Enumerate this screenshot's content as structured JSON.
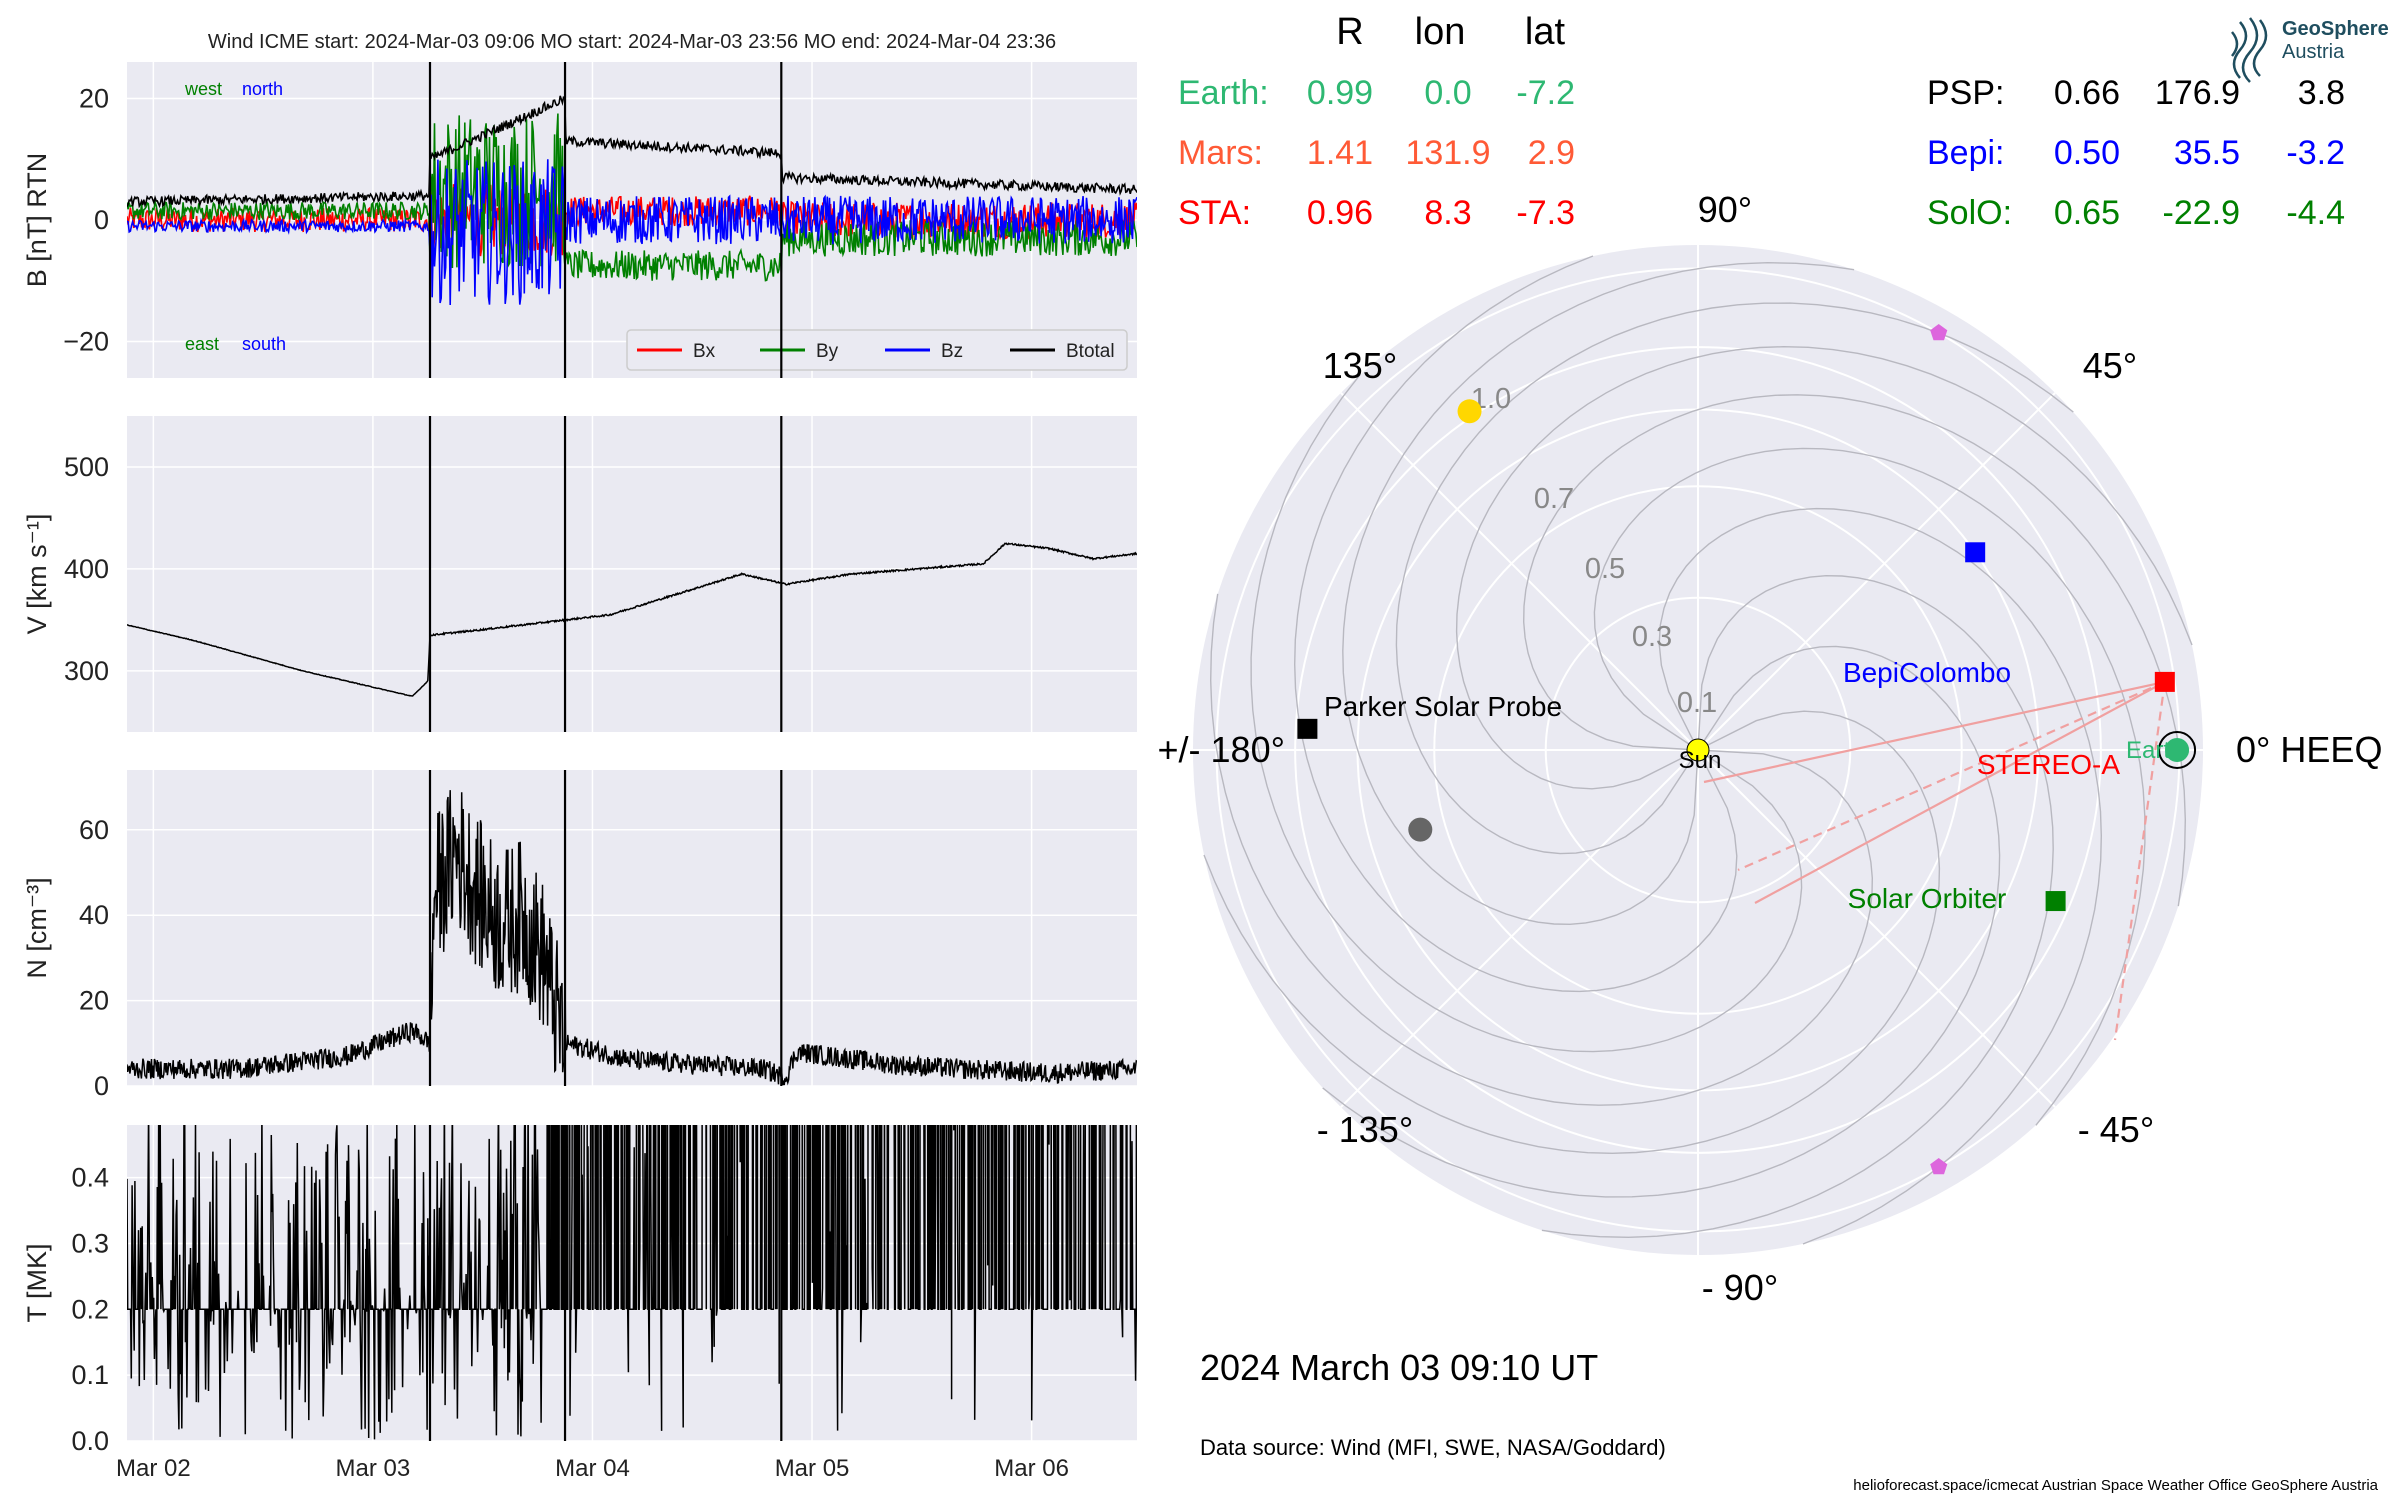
{
  "chart_data": [
    {
      "type": "line",
      "title": "Wind    ICME start: 2024-Mar-03 09:06   MO start: 2024-Mar-03 23:56   MO end: 2024-Mar-04 23:36",
      "ylabel": "B [nT] RTN",
      "ylim": [
        -26,
        26
      ],
      "yticks": [
        "20",
        "0",
        "−20"
      ],
      "annotations": {
        "west": "west",
        "north": "north",
        "east": "east",
        "south": "south"
      },
      "legend": [
        "Bx",
        "By",
        "Bz",
        "Btotal"
      ],
      "series": [
        {
          "name": "Bx",
          "color": "#ff0000",
          "before": [
            -2,
            2
          ],
          "sheath": [
            -6,
            6
          ],
          "cloud": [
            -1,
            4
          ],
          "after": [
            -3,
            3
          ]
        },
        {
          "name": "By",
          "color": "#008000",
          "before": [
            0,
            3
          ],
          "sheath": [
            -8,
            18
          ],
          "cloud": [
            -10,
            -5
          ],
          "after": [
            -6,
            0
          ]
        },
        {
          "name": "Bz",
          "color": "#0000ff",
          "before": [
            -2,
            0
          ],
          "sheath": [
            -14,
            10
          ],
          "cloud": [
            -4,
            4
          ],
          "after": [
            -4,
            4
          ]
        },
        {
          "name": "Btotal",
          "color": "#000000",
          "before": [
            3,
            4
          ],
          "sheath": [
            10,
            20
          ],
          "cloud": [
            13,
            11
          ],
          "after": [
            7,
            5
          ]
        }
      ],
      "legend_position": "bottom-right"
    },
    {
      "type": "line",
      "ylabel": "V [km s$^{-1}$]",
      "ylabel_display": "V [km s⁻¹]",
      "ylim": [
        240,
        550
      ],
      "yticks": [
        "500",
        "400",
        "300"
      ],
      "series": [
        {
          "name": "V",
          "color": "#000000",
          "points": [
            [
              0,
              345
            ],
            [
              0.1,
              340
            ],
            [
              0.3,
              330
            ],
            [
              0.5,
              318
            ],
            [
              0.8,
              300
            ],
            [
              1.1,
              285
            ],
            [
              1.3,
              275
            ],
            [
              1.37,
              290
            ],
            [
              1.38,
              335
            ],
            [
              1.6,
              340
            ],
            [
              1.8,
              345
            ],
            [
              2.0,
              350
            ],
            [
              2.2,
              355
            ],
            [
              2.5,
              375
            ],
            [
              2.8,
              395
            ],
            [
              3.0,
              385
            ],
            [
              3.3,
              395
            ],
            [
              3.6,
              400
            ],
            [
              3.9,
              405
            ],
            [
              4.0,
              425
            ],
            [
              4.2,
              420
            ],
            [
              4.4,
              410
            ],
            [
              4.6,
              415
            ]
          ]
        }
      ]
    },
    {
      "type": "line",
      "ylabel": "N [cm$^{-3}$]",
      "ylabel_display": "N [cm⁻³]",
      "ylim": [
        0,
        74
      ],
      "yticks": [
        "60",
        "40",
        "20",
        "0"
      ],
      "series": [
        {
          "name": "N",
          "color": "#000000",
          "points": [
            [
              0,
              4
            ],
            [
              0.5,
              4
            ],
            [
              1.0,
              7
            ],
            [
              1.3,
              13
            ],
            [
              1.38,
              10
            ],
            [
              1.4,
              45
            ],
            [
              1.5,
              55
            ],
            [
              1.6,
              45
            ],
            [
              1.7,
              38
            ],
            [
              1.8,
              40
            ],
            [
              1.9,
              30
            ],
            [
              1.95,
              18
            ],
            [
              2.0,
              10
            ],
            [
              2.3,
              6
            ],
            [
              2.6,
              5
            ],
            [
              2.9,
              4
            ],
            [
              3.0,
              2
            ],
            [
              3.05,
              8
            ],
            [
              3.2,
              7
            ],
            [
              3.5,
              5
            ],
            [
              3.8,
              4
            ],
            [
              4.2,
              3
            ],
            [
              4.6,
              4
            ]
          ]
        }
      ]
    },
    {
      "type": "line",
      "ylabel": "T [MK]",
      "ylim": [
        0,
        0.48
      ],
      "yticks": [
        "0.4",
        "0.3",
        "0.2",
        "0.1",
        "0.0"
      ],
      "x_ticks": [
        "Mar 02",
        "Mar 03",
        "Mar 04",
        "Mar 05",
        "Mar 06"
      ],
      "series": [
        {
          "name": "T",
          "color": "#000000",
          "points": [
            [
              0,
              0.02
            ],
            [
              0.5,
              0.02
            ],
            [
              1.0,
              0.01
            ],
            [
              1.37,
              0.01
            ],
            [
              1.4,
              0.06
            ],
            [
              1.6,
              0.05
            ],
            [
              1.8,
              0.07
            ],
            [
              2.0,
              0.08
            ],
            [
              2.1,
              0.18
            ],
            [
              2.3,
              0.2
            ],
            [
              2.5,
              0.16
            ],
            [
              2.7,
              0.12
            ],
            [
              2.8,
              0.03
            ],
            [
              2.9,
              0.15
            ],
            [
              3.0,
              0.22
            ],
            [
              3.1,
              0.14
            ],
            [
              3.3,
              0.12
            ],
            [
              3.5,
              0.2
            ],
            [
              3.7,
              0.16
            ],
            [
              3.9,
              0.1
            ],
            [
              4.1,
              0.08
            ],
            [
              4.3,
              0.06
            ],
            [
              4.6,
              0.05
            ]
          ]
        }
      ]
    },
    {
      "type": "scatter",
      "subtype": "polar",
      "angle_labels": [
        "90°",
        "45°",
        "0° HEEQ",
        "- 45°",
        "- 90°",
        "- 135°",
        "+/- 180°",
        "135°"
      ],
      "radial_labels": [
        "0.1",
        "0.3",
        "0.5",
        "0.7",
        "1.0"
      ],
      "radial_values": [
        0.1,
        0.3,
        0.5,
        0.7,
        1.0
      ],
      "bodies": [
        {
          "name": "Sun",
          "label": "Sun",
          "r": 0.0,
          "lon": 0.0,
          "color": "#ffff00",
          "marker": "circle"
        },
        {
          "name": "Earth",
          "label": "Earth",
          "r": 0.99,
          "lon": 0.0,
          "color": "#2eb872",
          "marker": "circle"
        },
        {
          "name": "STEREO-A",
          "label": "STEREO-A",
          "r": 0.96,
          "lon": 8.3,
          "color": "#ff0000",
          "marker": "square"
        },
        {
          "name": "BepiColombo",
          "label": "BepiColombo",
          "r": 0.5,
          "lon": 35.5,
          "color": "#0000ff",
          "marker": "square"
        },
        {
          "name": "Solar Orbiter",
          "label": "Solar Orbiter",
          "r": 0.65,
          "lon": -22.9,
          "color": "#008000",
          "marker": "square"
        },
        {
          "name": "Parker Solar Probe",
          "label": "Parker Solar Probe",
          "r": 0.66,
          "lon": 176.9,
          "color": "#000000",
          "marker": "square"
        },
        {
          "name": "Venus",
          "label": "",
          "r": 0.72,
          "lon": 124.0,
          "color": "#ffd700",
          "marker": "circle"
        },
        {
          "name": "Mercury",
          "label": "",
          "r": 0.36,
          "lon": -164.0,
          "color": "#666666",
          "marker": "circle"
        },
        {
          "name": "L4",
          "label": "",
          "r": 1.0,
          "lon": 60.0,
          "color": "#dd66dd",
          "marker": "pentagon"
        },
        {
          "name": "L5",
          "label": "",
          "r": 1.0,
          "lon": -60.0,
          "color": "#dd66dd",
          "marker": "pentagon"
        }
      ]
    }
  ],
  "position_table": {
    "header": {
      "r": "R",
      "lon": "lon",
      "lat": "lat"
    },
    "left_rows": [
      {
        "name": "Earth:",
        "r": "0.99",
        "lon": "0.0",
        "lat": "-7.2",
        "color": "#2eb872"
      },
      {
        "name": "Mars:",
        "r": "1.41",
        "lon": "131.9",
        "lat": "2.9",
        "color": "#ff5a36"
      },
      {
        "name": "STA:",
        "r": "0.96",
        "lon": "8.3",
        "lat": "-7.3",
        "color": "#ff0000"
      }
    ],
    "right_rows": [
      {
        "name": "PSP:",
        "r": "0.66",
        "lon": "176.9",
        "lat": "3.8",
        "color": "#000000"
      },
      {
        "name": "Bepi:",
        "r": "0.50",
        "lon": "35.5",
        "lat": "-3.2",
        "color": "#0000ff"
      },
      {
        "name": "SolO:",
        "r": "0.65",
        "lon": "-22.9",
        "lat": "-4.4",
        "color": "#008000"
      }
    ]
  },
  "logo": {
    "line1": "GeoSphere",
    "line2": "Austria"
  },
  "timestamp": "2024 March 03  09:10 UT",
  "data_source": "Data source: Wind (MFI, SWE, NASA/Goddard)",
  "footer": "helioforecast.space/icmecat   Austrian Space Weather Office   GeoSphere Austria",
  "colors": {
    "panel_bg": "#eaeaf2",
    "grid": "#ffffff",
    "event_lines": "#000000"
  }
}
